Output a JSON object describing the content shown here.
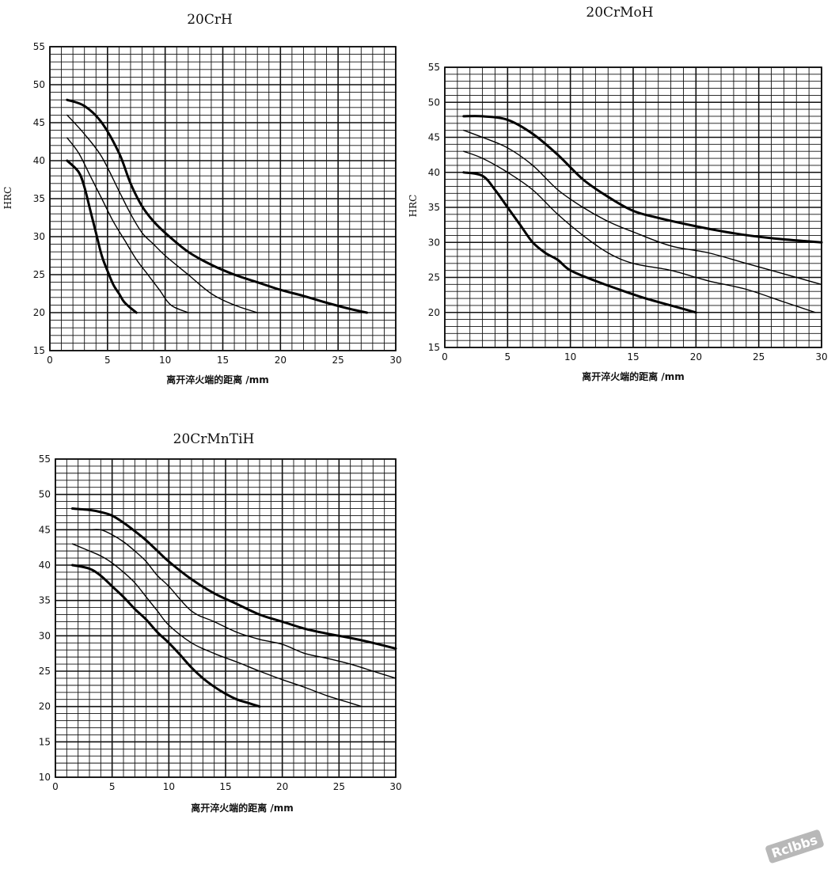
{
  "chart_data": [
    {
      "type": "line",
      "title": "20CrH",
      "xlabel": "离开淬火端的距离 /mm",
      "ylabel": "HRC",
      "xlim": [
        0,
        30
      ],
      "ylim": [
        15,
        55
      ],
      "xticks": [
        0,
        5,
        10,
        15,
        20,
        25,
        30
      ],
      "yticks": [
        15,
        20,
        25,
        30,
        35,
        40,
        45,
        50,
        55
      ],
      "grid": true,
      "series": [
        {
          "weight": "bold",
          "x": [
            1.5,
            3,
            4.5,
            6,
            7,
            8,
            9,
            10,
            12,
            14,
            16,
            18,
            20,
            22,
            24,
            26,
            27.5
          ],
          "y": [
            48,
            47.2,
            45,
            41,
            37,
            34,
            32,
            30.5,
            28,
            26.3,
            25,
            24,
            23,
            22.2,
            21.3,
            20.5,
            20
          ]
        },
        {
          "weight": "thin",
          "x": [
            1.5,
            3,
            4.5,
            6,
            7,
            8,
            9,
            10,
            12,
            14,
            16,
            18
          ],
          "y": [
            46,
            43.5,
            40.5,
            36,
            33,
            30.5,
            29,
            27.5,
            25,
            22.5,
            21,
            20
          ]
        },
        {
          "weight": "thin",
          "x": [
            1.5,
            2.5,
            3.5,
            4.5,
            5.5,
            6.5,
            7.5,
            8.5,
            9.5,
            10.5,
            12
          ],
          "y": [
            43,
            41,
            38,
            35,
            32,
            29.5,
            27,
            25,
            23,
            21,
            20
          ]
        },
        {
          "weight": "bold",
          "x": [
            1.5,
            2.5,
            3,
            3.5,
            4,
            4.5,
            5,
            5.5,
            6,
            6.5,
            7.5
          ],
          "y": [
            40,
            38.5,
            36.5,
            33.5,
            30.5,
            27.5,
            25.5,
            23.7,
            22.5,
            21.3,
            20
          ]
        }
      ]
    },
    {
      "type": "line",
      "title": "20CrMoH",
      "xlabel": "离开淬火端的距离 /mm",
      "ylabel": "HRC",
      "xlim": [
        0,
        30
      ],
      "ylim": [
        15,
        55
      ],
      "xticks": [
        0,
        5,
        10,
        15,
        20,
        25,
        30
      ],
      "yticks": [
        15,
        20,
        25,
        30,
        35,
        40,
        45,
        50,
        55
      ],
      "grid": true,
      "series": [
        {
          "weight": "bold",
          "x": [
            1.5,
            3,
            5,
            7,
            9,
            11,
            13,
            15,
            17,
            20,
            23,
            26,
            30
          ],
          "y": [
            48,
            48,
            47.5,
            45.5,
            42.5,
            39,
            36.5,
            34.5,
            33.5,
            32.3,
            31.3,
            30.6,
            30
          ]
        },
        {
          "weight": "thin",
          "x": [
            1.5,
            3,
            5,
            7,
            9,
            11,
            13,
            15,
            18,
            21,
            24,
            27,
            30
          ],
          "y": [
            46,
            45,
            43.5,
            41,
            37.5,
            35,
            33,
            31.5,
            29.5,
            28.5,
            27,
            25.5,
            24
          ]
        },
        {
          "weight": "thin",
          "x": [
            1.5,
            3,
            5,
            7,
            9,
            11,
            13,
            15,
            18,
            21,
            24,
            27,
            29.5
          ],
          "y": [
            43,
            42,
            40,
            37.5,
            34,
            31,
            28.5,
            27,
            26,
            24.5,
            23.3,
            21.5,
            20
          ]
        },
        {
          "weight": "bold",
          "x": [
            1.5,
            3,
            4,
            5,
            6,
            7,
            8,
            9,
            10,
            12,
            14,
            16,
            18,
            20
          ],
          "y": [
            40,
            39.5,
            37.5,
            35,
            32.5,
            30,
            28.5,
            27.5,
            26,
            24.5,
            23.2,
            22,
            21,
            20
          ]
        }
      ]
    },
    {
      "type": "line",
      "title": "20CrMnTiH",
      "xlabel": "离开淬火端的距离 /mm",
      "ylabel": "",
      "xlim": [
        0,
        30
      ],
      "ylim": [
        10,
        55
      ],
      "xticks": [
        0,
        5,
        10,
        15,
        20,
        25,
        30
      ],
      "yticks": [
        10,
        15,
        20,
        25,
        30,
        35,
        40,
        45,
        50,
        55
      ],
      "grid": true,
      "series": [
        {
          "weight": "bold",
          "x": [
            1.5,
            3,
            4,
            5,
            6,
            7,
            8,
            9,
            10,
            12,
            14,
            16,
            18,
            20,
            22,
            24,
            26,
            28,
            30
          ],
          "y": [
            48,
            47.8,
            47.5,
            47,
            46,
            44.8,
            43.5,
            42,
            40.5,
            38,
            36,
            34.5,
            33,
            32,
            31,
            30.3,
            29.7,
            29,
            28.2
          ]
        },
        {
          "weight": "thin",
          "x": [
            3,
            4,
            5,
            6,
            7,
            8,
            9,
            10,
            12,
            14,
            16,
            18,
            20,
            22,
            24,
            26,
            28,
            30
          ],
          "y": [
            45,
            45,
            44.3,
            43.3,
            42,
            40.5,
            38.5,
            37,
            33.5,
            32,
            30.5,
            29.5,
            28.8,
            27.5,
            26.8,
            26,
            25,
            24
          ]
        },
        {
          "weight": "thin",
          "x": [
            1.5,
            3,
            4,
            5,
            6,
            7,
            8,
            9,
            10,
            12,
            14,
            16,
            18,
            20,
            22,
            24,
            26,
            27
          ],
          "y": [
            43,
            42,
            41.3,
            40.3,
            39,
            37.5,
            35.5,
            33.5,
            31.5,
            29,
            27.5,
            26.3,
            25,
            23.8,
            22.7,
            21.5,
            20.5,
            20
          ]
        },
        {
          "weight": "bold",
          "x": [
            1.5,
            3,
            4,
            5,
            6,
            7,
            8,
            9,
            10,
            11,
            12,
            13,
            14,
            15,
            16,
            17,
            18
          ],
          "y": [
            40,
            39.5,
            38.5,
            37,
            35.5,
            33.8,
            32.3,
            30.5,
            29,
            27.3,
            25.5,
            24,
            22.8,
            21.8,
            21,
            20.5,
            20
          ]
        }
      ]
    }
  ],
  "watermark": "Rclbbs"
}
